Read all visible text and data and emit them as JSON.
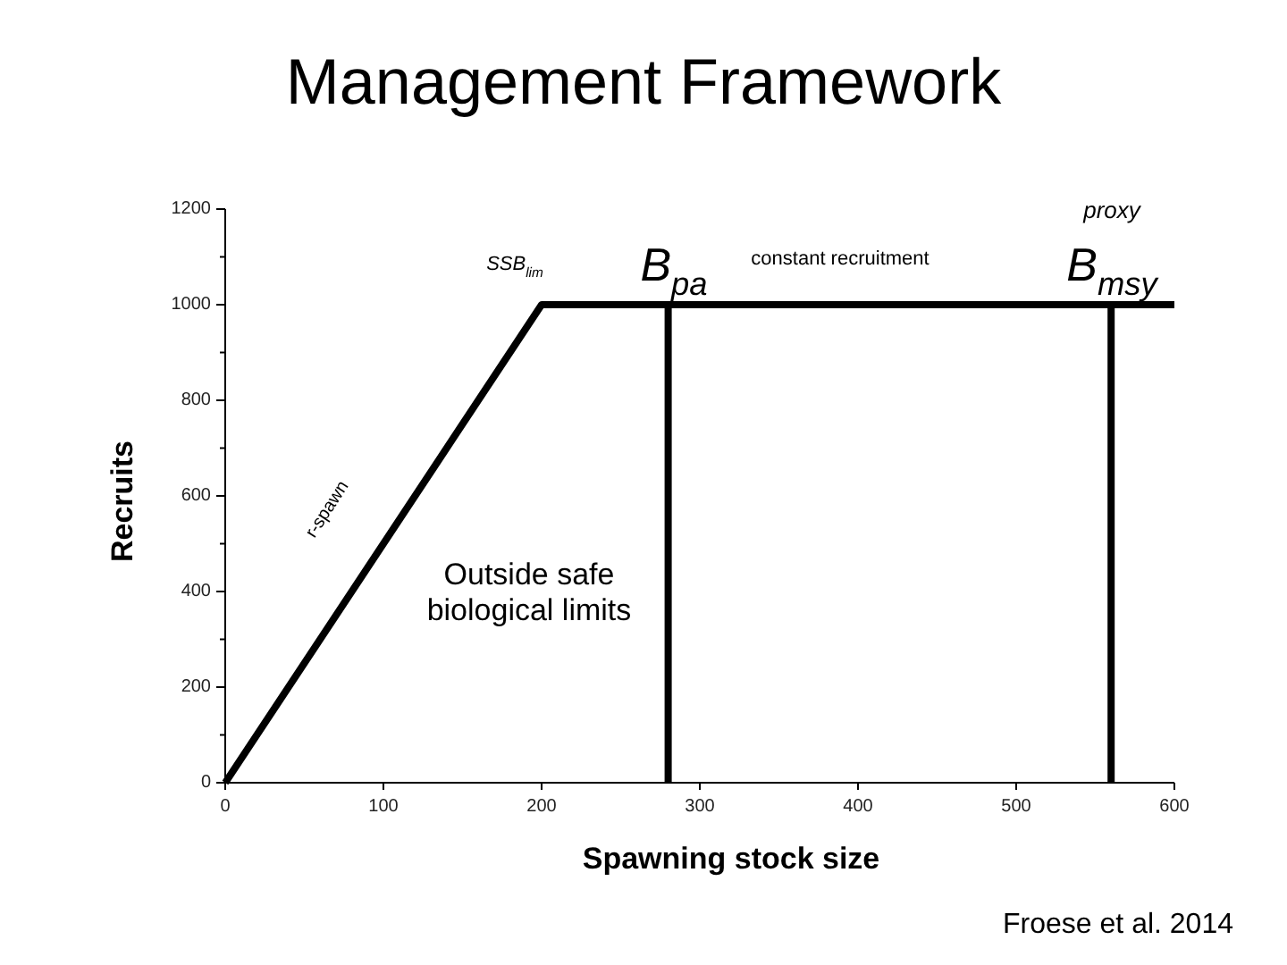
{
  "chart_data": {
    "type": "line",
    "title": "Management Framework",
    "xlabel": "Spawning stock size",
    "ylabel": "Recruits",
    "xlim": [
      0,
      600
    ],
    "xticks": [
      0,
      100,
      200,
      300,
      400,
      500,
      600
    ],
    "ylim": [
      0,
      1200
    ],
    "yticks": [
      0,
      {
        "value": 100,
        "label": null
      },
      200,
      {
        "value": 300,
        "label": null
      },
      400,
      {
        "value": 500,
        "label": null
      },
      600,
      {
        "value": 700,
        "label": null
      },
      800,
      {
        "value": 900,
        "label": null
      },
      1000,
      {
        "value": 1100,
        "label": null
      },
      1200
    ],
    "series": [
      {
        "color": "#000000",
        "x": [
          0,
          200,
          600
        ],
        "values": [
          0,
          1000,
          1000
        ]
      },
      {
        "color": "#000000",
        "x": [
          280,
          280
        ],
        "values": [
          0,
          1000
        ]
      },
      {
        "color": "#000000",
        "x": [
          560,
          560
        ],
        "values": [
          0,
          1000
        ]
      }
    ],
    "marker": "none",
    "line_style": "solid",
    "grid": false,
    "annotations": [
      "SSB$_{lim}$",
      "B$_{pa}$",
      "constant recruitment",
      "proxy",
      "B$_{msy}$",
      "Outside safe\nbiological limits",
      "r-spawn",
      "Froese et al. 2014"
    ]
  }
}
